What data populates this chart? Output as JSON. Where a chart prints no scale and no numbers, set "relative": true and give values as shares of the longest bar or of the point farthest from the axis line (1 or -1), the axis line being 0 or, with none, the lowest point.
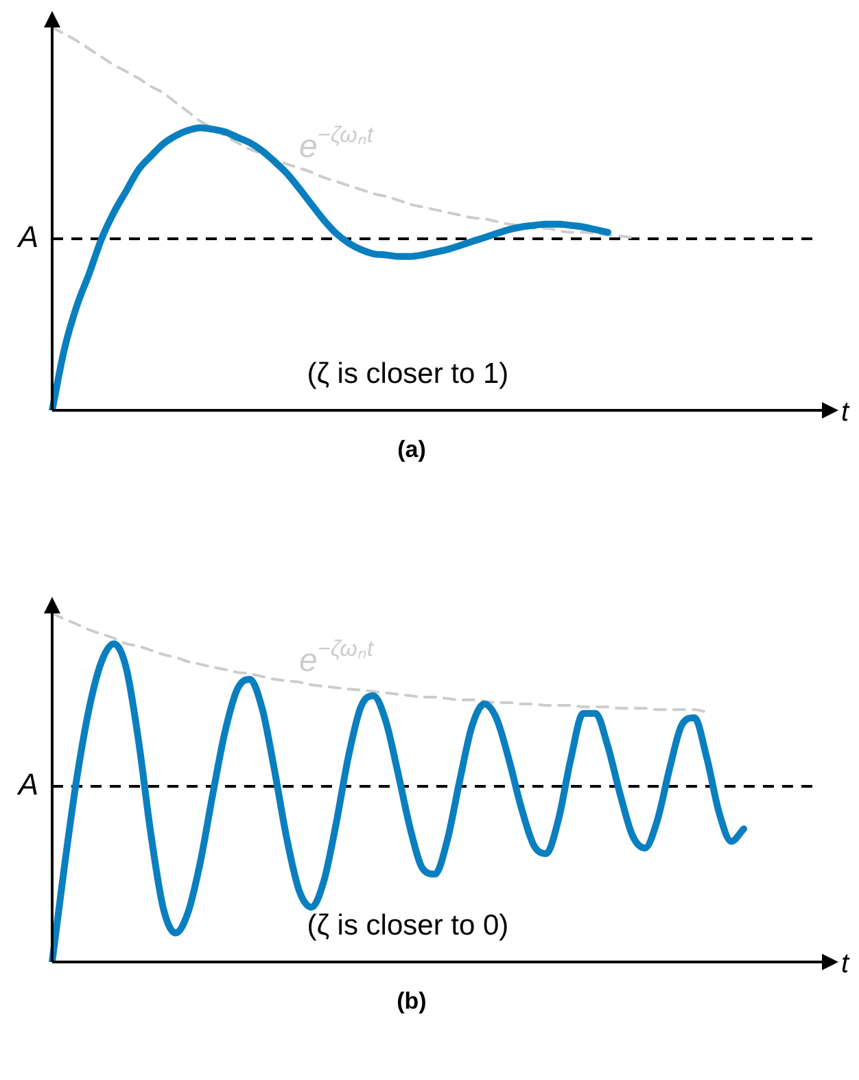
{
  "chart_data": [
    {
      "type": "line",
      "title": "(a)",
      "xlabel": "t",
      "relative": true,
      "tick_labels": false,
      "categories": [
        null,
        null,
        null,
        null,
        null,
        null,
        null,
        null,
        null,
        null,
        null,
        null,
        null,
        null,
        null,
        null,
        null,
        null,
        null,
        null,
        null,
        null,
        null,
        null,
        null,
        null,
        null,
        null,
        null,
        null,
        null,
        null,
        null,
        null,
        null,
        null,
        null,
        null,
        null,
        null,
        null,
        null,
        null,
        null,
        null,
        null,
        null,
        null,
        null,
        null,
        null,
        null,
        null,
        null,
        null,
        null,
        null,
        null,
        null,
        null,
        null,
        null,
        null,
        null,
        null
      ],
      "series": [
        {
          "color": "#0a7fc0",
          "values": [
            0,
            0.161,
            0.273,
            0.357,
            0.448,
            0.517,
            0.573,
            0.629,
            0.664,
            0.696,
            0.717,
            0.731,
            0.738,
            0.734,
            0.727,
            0.713,
            0.699,
            0.678,
            0.65,
            0.619,
            0.58,
            0.538,
            0.497,
            0.462,
            0.437,
            0.42,
            0.409,
            0.406,
            0.402,
            0.402,
            0.406,
            0.413,
            0.42,
            0.43,
            0.441,
            0.451,
            0.462,
            0.472,
            0.479,
            0.483,
            0.486,
            0.486,
            0.483,
            0.479,
            0.472,
            0.465,
            null,
            null,
            null,
            null,
            null,
            null,
            null,
            null,
            null,
            null,
            null,
            null,
            null,
            null,
            null,
            null,
            null,
            null,
            null
          ]
        },
        {
          "name": "e$^{−ζωₙt}$",
          "color": "#cccccc",
          "line_style": "dashed",
          "values": [
            1,
            0.983,
            0.965,
            0.944,
            0.923,
            0.902,
            0.885,
            0.867,
            0.846,
            0.829,
            0.804,
            0.78,
            0.755,
            0.738,
            0.717,
            0.699,
            0.682,
            0.671,
            0.657,
            0.643,
            0.633,
            0.622,
            0.608,
            0.598,
            0.587,
            0.577,
            0.566,
            0.559,
            0.549,
            0.538,
            0.531,
            0.524,
            0.517,
            0.51,
            0.503,
            0.5,
            0.493,
            0.486,
            0.483,
            0.476,
            0.476,
            0.469,
            0.465,
            0.465,
            0.462,
            0.458,
            0.455,
            0.451,
            null,
            null,
            null,
            null,
            null,
            null,
            null,
            null,
            null,
            null,
            null,
            null,
            null,
            null,
            null,
            null,
            null
          ]
        }
      ],
      "ref_lines": [
        {
          "axis": "y",
          "value": 0.448,
          "label": "A",
          "color": "#000000",
          "line_style": "dashed"
        }
      ],
      "annotations": [
        "(ζ is closer to 1)"
      ]
    },
    {
      "type": "line",
      "title": "(b)",
      "xlabel": "t",
      "relative": true,
      "tick_labels": false,
      "categories": [
        null,
        null,
        null,
        null,
        null,
        null,
        null,
        null,
        null,
        null,
        null,
        null,
        null,
        null,
        null,
        null,
        null,
        null,
        null,
        null,
        null,
        null,
        null,
        null,
        null,
        null,
        null,
        null,
        null,
        null,
        null,
        null,
        null,
        null,
        null,
        null,
        null,
        null,
        null,
        null,
        null,
        null,
        null,
        null,
        null,
        null,
        null,
        null,
        null,
        null,
        null,
        null,
        null,
        null,
        null,
        null,
        null,
        null,
        null,
        null,
        null,
        null,
        null,
        null,
        null
      ],
      "series": [
        {
          "color": "#0a7fc0",
          "values": [
            0,
            0.276,
            0.528,
            0.728,
            0.862,
            0.913,
            0.843,
            0.634,
            0.366,
            0.154,
            0.083,
            0.142,
            0.287,
            0.48,
            0.661,
            0.783,
            0.811,
            0.728,
            0.551,
            0.354,
            0.205,
            0.157,
            0.232,
            0.398,
            0.591,
            0.732,
            0.764,
            0.693,
            0.543,
            0.382,
            0.268,
            0.252,
            0.35,
            0.52,
            0.677,
            0.74,
            0.697,
            0.579,
            0.441,
            0.335,
            0.311,
            0.409,
            0.583,
            0.713,
            0.713,
            0.618,
            0.48,
            0.362,
            0.327,
            0.406,
            0.555,
            0.681,
            0.701,
            0.587,
            0.429,
            0.346,
            0.382,
            null,
            null,
            null,
            null,
            null,
            null,
            null,
            null
          ]
        },
        {
          "name": "e$^{−ζωₙt}$",
          "color": "#cccccc",
          "line_style": "dashed",
          "values": [
            1,
            0.984,
            0.969,
            0.953,
            0.941,
            0.929,
            0.913,
            0.906,
            0.894,
            0.882,
            0.874,
            0.862,
            0.854,
            0.846,
            0.839,
            0.831,
            0.827,
            0.819,
            0.811,
            0.807,
            0.803,
            0.795,
            0.791,
            0.787,
            0.783,
            0.78,
            0.776,
            0.772,
            0.768,
            0.764,
            0.76,
            0.76,
            0.756,
            0.752,
            0.752,
            0.748,
            0.744,
            0.744,
            0.74,
            0.74,
            0.736,
            0.736,
            0.736,
            0.732,
            0.732,
            0.732,
            0.728,
            0.728,
            0.728,
            0.724,
            0.724,
            0.724,
            0.724,
            0.717,
            null,
            null,
            null,
            null,
            null,
            null,
            null,
            null,
            null,
            null,
            null
          ]
        }
      ],
      "ref_lines": [
        {
          "axis": "y",
          "value": 0.504,
          "label": "A",
          "color": "#000000",
          "line_style": "dashed"
        }
      ],
      "annotations": [
        "(ζ is closer to 0)"
      ]
    }
  ]
}
